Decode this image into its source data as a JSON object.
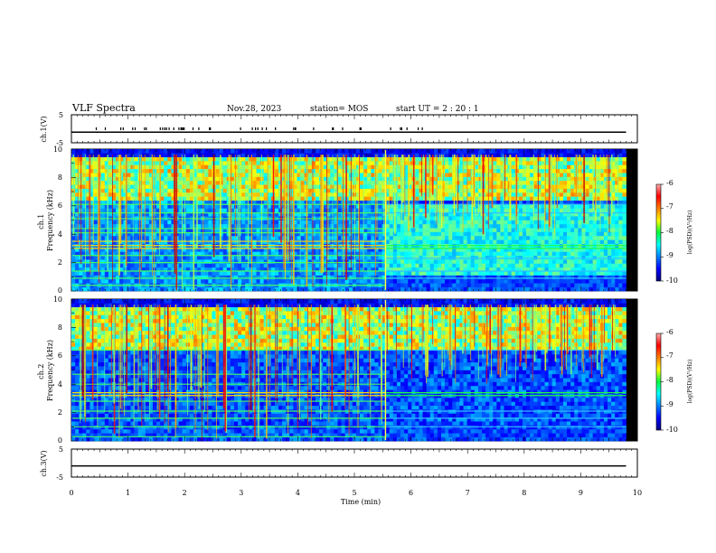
{
  "header": {
    "title": "VLF Spectra",
    "date": "Nov.28, 2023",
    "station": "station= MOS",
    "start": "start  UT =  2 : 20 : 1"
  },
  "chart_data": [
    {
      "type": "line",
      "panel": "ch1-voltage",
      "ylabel": "ch.1(V)",
      "ylim": [
        -5,
        5
      ],
      "yticks": [
        "5",
        "-5"
      ],
      "xlim": [
        0,
        10
      ],
      "series": [
        {
          "x": [
            0,
            9.8
          ],
          "values": [
            -1.2,
            -1.2
          ]
        }
      ]
    },
    {
      "type": "heatmap",
      "panel": "ch1-spectrogram",
      "ylabel": "ch.1\nFrequency (kHz)",
      "ylim": [
        0,
        10
      ],
      "yticks": [
        "0",
        "2",
        "4",
        "6",
        "8",
        "10"
      ],
      "xlim": [
        0,
        10
      ],
      "data_end_min": 9.8,
      "transition_min": 5.55,
      "colorbar": {
        "label": "log(PSD)(V²/Hz)",
        "range": [
          -10,
          -6
        ],
        "ticks": [
          "-6",
          "-7",
          "-8",
          "-9",
          "-10"
        ]
      },
      "bands_khz_before": [
        0.4,
        0.9,
        1.4,
        2.0,
        2.5,
        3.0,
        3.2,
        3.5,
        4.1,
        4.4,
        5.1,
        5.5,
        6.1
      ],
      "bands_khz_after": [
        0.9,
        1.4,
        2.3,
        3.0,
        3.2,
        5.5,
        6.1
      ]
    },
    {
      "type": "heatmap",
      "panel": "ch2-spectrogram",
      "ylabel": "ch.2\nFrequency (kHz)",
      "ylim": [
        0,
        10
      ],
      "yticks": [
        "0",
        "2",
        "4",
        "6",
        "8",
        "10"
      ],
      "xlim": [
        0,
        10
      ],
      "data_end_min": 9.8,
      "transition_min": 5.55,
      "colorbar": {
        "label": "log(PSD)(V²/Hz)",
        "range": [
          -10,
          -6
        ],
        "ticks": [
          "-6",
          "-7",
          "-8",
          "-9",
          "-10"
        ]
      },
      "bands_khz_before": [
        0.3,
        1.0,
        1.6,
        2.1,
        2.8,
        3.2,
        3.4,
        4.0,
        4.7,
        6.4
      ],
      "bands_khz_after": [
        1.0,
        1.6,
        2.1,
        3.2,
        3.4,
        6.4
      ]
    },
    {
      "type": "line",
      "panel": "ch3-voltage",
      "ylabel": "ch.3(V)",
      "ylim": [
        -5,
        5
      ],
      "yticks": [
        "5",
        "-5"
      ],
      "xlim": [
        0,
        10
      ],
      "series": [
        {
          "x": [
            0,
            9.8
          ],
          "values": [
            -1.0,
            -1.0
          ]
        }
      ]
    }
  ],
  "xaxis": {
    "label": "Time (min)",
    "ticks": [
      "0",
      "1",
      "2",
      "3",
      "4",
      "5",
      "6",
      "7",
      "8",
      "9",
      "10"
    ]
  },
  "colors": {
    "background": "#000000",
    "axis": "#000000"
  }
}
